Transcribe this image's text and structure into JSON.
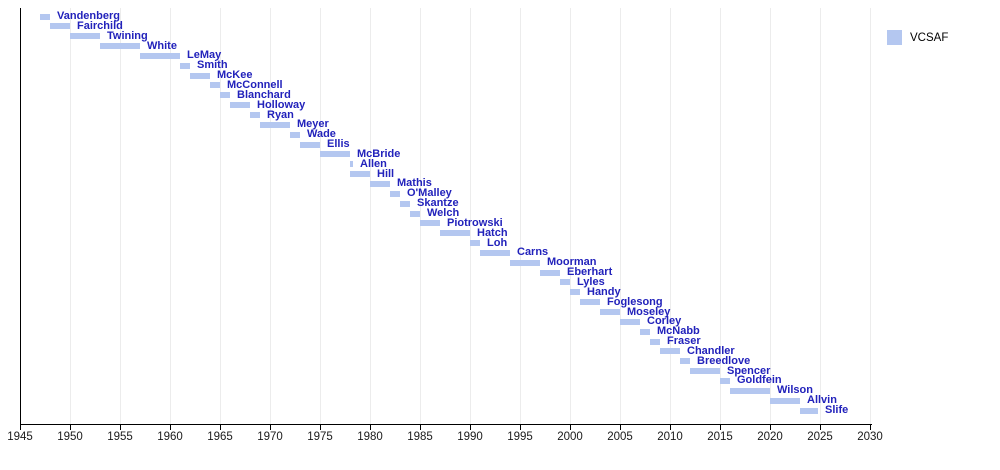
{
  "colors": {
    "bar_fill": "#b4c7f0",
    "bar_label": "#2222bb",
    "gridline": "#ececec",
    "axis": "#000000",
    "background": "#ffffff"
  },
  "chart_data": {
    "type": "bar",
    "subtype": "timeline-gantt",
    "orientation": "horizontal",
    "grid": true,
    "x_axis": {
      "min": 1945,
      "max": 2030,
      "tick_interval": 5,
      "ticks": [
        1945,
        1950,
        1955,
        1960,
        1965,
        1970,
        1975,
        1980,
        1985,
        1990,
        1995,
        2000,
        2005,
        2010,
        2015,
        2020,
        2025,
        2030
      ]
    },
    "legend": {
      "position": "top-right",
      "entries": [
        {
          "label": "VCSAF",
          "color": "#b4c7f0"
        }
      ]
    },
    "bars": [
      {
        "name": "Vandenberg",
        "start": 1947,
        "end": 1948
      },
      {
        "name": "Fairchild",
        "start": 1948,
        "end": 1950
      },
      {
        "name": "Twining",
        "start": 1950,
        "end": 1953
      },
      {
        "name": "White",
        "start": 1953,
        "end": 1957
      },
      {
        "name": "LeMay",
        "start": 1957,
        "end": 1961
      },
      {
        "name": "Smith",
        "start": 1961,
        "end": 1962
      },
      {
        "name": "McKee",
        "start": 1962,
        "end": 1964
      },
      {
        "name": "McConnell",
        "start": 1964,
        "end": 1965
      },
      {
        "name": "Blanchard",
        "start": 1965,
        "end": 1966
      },
      {
        "name": "Holloway",
        "start": 1966,
        "end": 1968
      },
      {
        "name": "Ryan",
        "start": 1968,
        "end": 1969
      },
      {
        "name": "Meyer",
        "start": 1969,
        "end": 1972
      },
      {
        "name": "Wade",
        "start": 1972,
        "end": 1973
      },
      {
        "name": "Ellis",
        "start": 1973,
        "end": 1975
      },
      {
        "name": "McBride",
        "start": 1975,
        "end": 1978
      },
      {
        "name": "Allen",
        "start": 1978,
        "end": 1978.3
      },
      {
        "name": "Hill",
        "start": 1978,
        "end": 1980
      },
      {
        "name": "Mathis",
        "start": 1980,
        "end": 1982
      },
      {
        "name": "O'Malley",
        "start": 1982,
        "end": 1983
      },
      {
        "name": "Skantze",
        "start": 1983,
        "end": 1984
      },
      {
        "name": "Welch",
        "start": 1984,
        "end": 1985
      },
      {
        "name": "Piotrowski",
        "start": 1985,
        "end": 1987
      },
      {
        "name": "Hatch",
        "start": 1987,
        "end": 1990
      },
      {
        "name": "Loh",
        "start": 1990,
        "end": 1991
      },
      {
        "name": "Carns",
        "start": 1991,
        "end": 1994
      },
      {
        "name": "Moorman",
        "start": 1994,
        "end": 1997
      },
      {
        "name": "Eberhart",
        "start": 1997,
        "end": 1999
      },
      {
        "name": "Lyles",
        "start": 1999,
        "end": 2000
      },
      {
        "name": "Handy",
        "start": 2000,
        "end": 2001
      },
      {
        "name": "Foglesong",
        "start": 2001,
        "end": 2003
      },
      {
        "name": "Moseley",
        "start": 2003,
        "end": 2005
      },
      {
        "name": "Corley",
        "start": 2005,
        "end": 2007
      },
      {
        "name": "McNabb",
        "start": 2007,
        "end": 2008
      },
      {
        "name": "Fraser",
        "start": 2008,
        "end": 2009
      },
      {
        "name": "Chandler",
        "start": 2009,
        "end": 2011
      },
      {
        "name": "Breedlove",
        "start": 2011,
        "end": 2012
      },
      {
        "name": "Spencer",
        "start": 2012,
        "end": 2015
      },
      {
        "name": "Goldfein",
        "start": 2015,
        "end": 2016
      },
      {
        "name": "Wilson",
        "start": 2016,
        "end": 2020
      },
      {
        "name": "Allvin",
        "start": 2020,
        "end": 2023
      },
      {
        "name": "Slife",
        "start": 2023,
        "end": 2024.8
      }
    ]
  }
}
